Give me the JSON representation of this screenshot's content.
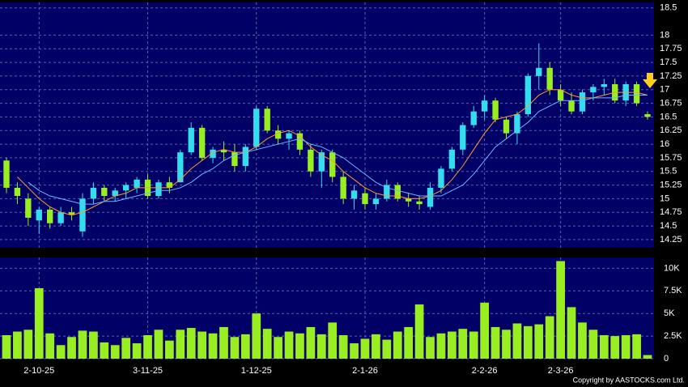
{
  "chart_data": {
    "type": "candlestick",
    "categories": [
      null,
      null,
      null,
      "2-10-25",
      null,
      null,
      null,
      null,
      null,
      null,
      null,
      null,
      null,
      "3-11-25",
      null,
      null,
      null,
      null,
      null,
      null,
      null,
      null,
      null,
      "1-12-25",
      null,
      null,
      null,
      null,
      null,
      null,
      null,
      null,
      null,
      "2-1-26",
      null,
      null,
      null,
      null,
      null,
      null,
      null,
      null,
      null,
      null,
      "2-2-26",
      null,
      null,
      null,
      null,
      null,
      null,
      "2-3-26",
      null,
      null,
      null,
      null,
      null,
      null,
      null,
      null
    ],
    "open": [
      15.7,
      15.2,
      15.0,
      14.6,
      14.8,
      14.55,
      14.75,
      14.4,
      15.0,
      15.2,
      15.05,
      15.15,
      15.2,
      15.35,
      15.05,
      15.3,
      15.3,
      15.85,
      16.3,
      15.75,
      15.9,
      15.85,
      15.6,
      15.95,
      16.65,
      16.25,
      16.1,
      16.2,
      15.9,
      15.5,
      15.85,
      15.4,
      15.0,
      15.1,
      14.9,
      15.0,
      15.25,
      15.0,
      14.95,
      14.85,
      15.2,
      15.55,
      15.9,
      16.35,
      16.6,
      16.8,
      16.45,
      16.2,
      16.55,
      17.25,
      17.4,
      17.0,
      16.8,
      16.6,
      16.95,
      17.05,
      17.1,
      16.8,
      17.1,
      16.55
    ],
    "high": [
      15.75,
      15.3,
      15.1,
      14.85,
      14.85,
      14.85,
      14.85,
      15.1,
      15.3,
      15.25,
      15.2,
      15.3,
      15.4,
      15.45,
      15.35,
      15.4,
      15.9,
      16.4,
      16.35,
      15.95,
      16.05,
      16.0,
      16.0,
      16.7,
      16.7,
      16.35,
      16.25,
      16.25,
      16.0,
      15.9,
      15.9,
      15.5,
      15.25,
      15.2,
      15.1,
      15.35,
      15.3,
      15.1,
      15.05,
      15.3,
      15.6,
      15.95,
      16.4,
      16.7,
      16.9,
      16.85,
      16.5,
      16.6,
      17.3,
      17.85,
      17.5,
      17.1,
      16.95,
      17.0,
      17.1,
      17.2,
      17.2,
      17.15,
      17.15,
      16.6
    ],
    "low": [
      15.1,
      14.9,
      14.5,
      14.35,
      14.45,
      14.5,
      14.6,
      14.3,
      14.9,
      14.95,
      14.95,
      15.0,
      15.1,
      15.0,
      15.0,
      15.1,
      15.3,
      15.8,
      15.7,
      15.65,
      15.7,
      15.5,
      15.5,
      15.9,
      16.2,
      16.0,
      15.9,
      15.8,
      15.4,
      15.2,
      15.3,
      14.9,
      14.8,
      14.8,
      14.8,
      14.95,
      14.95,
      14.85,
      14.8,
      14.8,
      15.1,
      15.5,
      15.8,
      16.3,
      16.45,
      16.4,
      16.1,
      16.0,
      16.5,
      17.0,
      16.9,
      16.7,
      16.55,
      16.55,
      16.8,
      16.9,
      16.75,
      16.7,
      16.7,
      16.45
    ],
    "close": [
      15.2,
      15.05,
      14.65,
      14.8,
      14.55,
      14.75,
      14.7,
      15.0,
      15.2,
      15.05,
      15.15,
      15.25,
      15.35,
      15.05,
      15.3,
      15.2,
      15.85,
      16.3,
      15.75,
      15.9,
      15.85,
      15.6,
      15.95,
      16.65,
      16.25,
      16.1,
      16.2,
      15.9,
      15.5,
      15.85,
      15.4,
      15.0,
      15.15,
      14.9,
      15.0,
      15.25,
      15.0,
      14.95,
      14.9,
      15.2,
      15.55,
      15.9,
      16.35,
      16.6,
      16.8,
      16.45,
      16.2,
      16.55,
      17.25,
      17.4,
      17.0,
      16.8,
      16.6,
      16.95,
      17.05,
      17.1,
      16.8,
      17.1,
      16.75,
      16.5
    ],
    "up_color": "#33ddee",
    "down_color": "#99ee22",
    "ylim": [
      14.1,
      18.6
    ],
    "yticks": [
      14.25,
      14.5,
      14.75,
      15,
      15.25,
      15.5,
      15.75,
      16,
      16.25,
      16.5,
      16.75,
      17,
      17.25,
      17.5,
      17.75,
      18,
      18.5
    ],
    "lines": [
      {
        "color": "#ff9933",
        "values": [
          null,
          15.4,
          15.2,
          15.0,
          14.85,
          14.75,
          14.7,
          14.75,
          14.85,
          14.95,
          15.05,
          15.1,
          15.2,
          15.2,
          15.2,
          15.2,
          15.35,
          15.55,
          15.7,
          15.85,
          15.9,
          15.85,
          15.85,
          15.95,
          16.1,
          16.2,
          16.25,
          16.15,
          15.95,
          15.8,
          15.7,
          15.5,
          15.35,
          15.2,
          15.1,
          15.05,
          15.05,
          15.0,
          15.0,
          15.05,
          15.15,
          15.35,
          15.6,
          15.9,
          16.2,
          16.45,
          16.5,
          16.55,
          16.7,
          16.9,
          17.0,
          17.0,
          16.9,
          16.85,
          16.85,
          16.9,
          16.95,
          16.95,
          16.95,
          16.9
        ]
      },
      {
        "color": "#66bbff",
        "values": [
          null,
          null,
          15.3,
          15.15,
          15.05,
          15.0,
          14.95,
          14.9,
          14.9,
          14.95,
          14.95,
          15.0,
          15.05,
          15.1,
          15.15,
          15.15,
          15.2,
          15.3,
          15.45,
          15.55,
          15.7,
          15.8,
          15.85,
          15.9,
          15.95,
          16.0,
          16.05,
          16.1,
          16.0,
          15.95,
          15.85,
          15.75,
          15.6,
          15.45,
          15.3,
          15.2,
          15.15,
          15.1,
          15.05,
          15.05,
          15.05,
          15.15,
          15.25,
          15.45,
          15.7,
          15.95,
          16.1,
          16.25,
          16.4,
          16.6,
          16.7,
          16.8,
          16.8,
          16.8,
          16.85,
          16.85,
          16.85,
          16.9,
          16.9,
          16.9
        ]
      }
    ],
    "volume": {
      "color": "#99ee22",
      "values": [
        2600,
        3000,
        3200,
        7800,
        2800,
        1500,
        2400,
        3100,
        3000,
        1800,
        1500,
        2300,
        1700,
        2600,
        3200,
        2000,
        3200,
        3400,
        3000,
        2800,
        3500,
        2400,
        2700,
        5000,
        3300,
        2400,
        3000,
        2800,
        3500,
        2700,
        4000,
        2600,
        1700,
        2200,
        2700,
        2100,
        3000,
        3500,
        6000,
        2400,
        2800,
        3000,
        3300,
        3000,
        6200,
        3500,
        3200,
        3900,
        3600,
        3800,
        4700,
        10800,
        5700,
        4000,
        3200,
        2600,
        2500,
        2600,
        2700,
        400
      ],
      "ylim": [
        0,
        11200
      ],
      "yticks": [
        0,
        {
          "value": 2500,
          "label": "2.5K"
        },
        {
          "value": 5000,
          "label": "5K"
        },
        {
          "value": 7500,
          "label": "7.5K"
        },
        {
          "value": 10000,
          "label": "10K"
        }
      ]
    },
    "credit": "Copyright by AASTOCKS.com Ltd."
  }
}
